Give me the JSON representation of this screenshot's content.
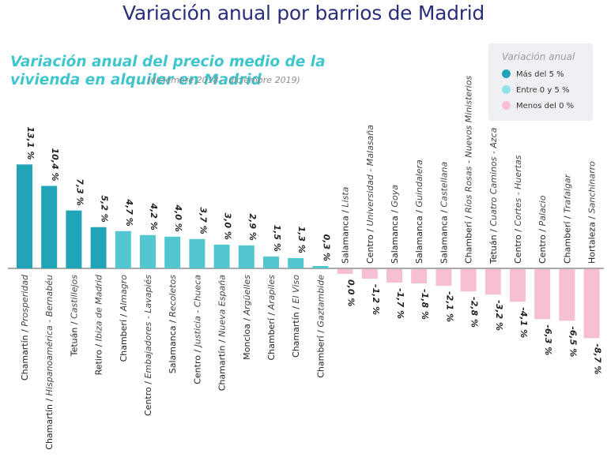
{
  "page": {
    "title": "Variación anual por barrios de Madrid"
  },
  "legend": {
    "title": "Variación anual",
    "items": [
      {
        "label": "Más del 5 %",
        "color": "#21a3b8"
      },
      {
        "label": "Entre 0 y 5 %",
        "color": "#53c7d0"
      },
      {
        "label": "Menos del 0 %",
        "color": "#f7bfd3"
      }
    ]
  },
  "chart_data": {
    "type": "bar",
    "title": "Variación anual del precio medio de la vivienda en alquiler en Madrid",
    "subtitle": "(diciembre 2018 – diciembre 2019)",
    "unit": "%",
    "categories": [
      {
        "district": "Chamartín",
        "barrio": "Prosperidad",
        "value": 13.1,
        "label": "13,1 %"
      },
      {
        "district": "Chamartín",
        "barrio": "Hispanoamérica - Bernabéu",
        "value": 10.4,
        "label": "10,4 %"
      },
      {
        "district": "Tetuán",
        "barrio": "Castillejos",
        "value": 7.3,
        "label": "7,3 %"
      },
      {
        "district": "Retiro",
        "barrio": "Ibiza de Madrid",
        "value": 5.2,
        "label": "5,2 %"
      },
      {
        "district": "Chamberí",
        "barrio": "Almagro",
        "value": 4.7,
        "label": "4,7 %"
      },
      {
        "district": "Centro",
        "barrio": "Embajadores - Lavapiés",
        "value": 4.2,
        "label": "4,2 %"
      },
      {
        "district": "Salamanca",
        "barrio": "Recoletos",
        "value": 4.0,
        "label": "4,0 %"
      },
      {
        "district": "Centro",
        "barrio": "Justicia - Chueca",
        "value": 3.7,
        "label": "3,7 %"
      },
      {
        "district": "Chamartín",
        "barrio": "Nueva España",
        "value": 3.0,
        "label": "3,0 %"
      },
      {
        "district": "Moncloa",
        "barrio": "Argüelles",
        "value": 2.9,
        "label": "2,9 %"
      },
      {
        "district": "Chamberí",
        "barrio": "Arapiles",
        "value": 1.5,
        "label": "1,5 %"
      },
      {
        "district": "Chamartín",
        "barrio": "El Viso",
        "value": 1.3,
        "label": "1,3 %"
      },
      {
        "district": "Chamberí",
        "barrio": "Gaztambide",
        "value": 0.3,
        "label": "0,3 %"
      },
      {
        "district": "Salamanca",
        "barrio": "Lista",
        "value": -0.0,
        "label": "0,0 %"
      },
      {
        "district": "Centro",
        "barrio": "Universidad - Malasaña",
        "value": -1.2,
        "label": "-1,2 %"
      },
      {
        "district": "Salamanca",
        "barrio": "Goya",
        "value": -1.7,
        "label": "-1,7 %"
      },
      {
        "district": "Salamanca",
        "barrio": "Guindalera",
        "value": -1.8,
        "label": "-1,8 %"
      },
      {
        "district": "Salamanca",
        "barrio": "Castellana",
        "value": -2.1,
        "label": "-2,1 %"
      },
      {
        "district": "Chamberí",
        "barrio": "Ríos Rosas - Nuevos Ministerios",
        "value": -2.8,
        "label": "-2,8 %"
      },
      {
        "district": "Tetuán",
        "barrio": "Cuatro Caminos - Azca",
        "value": -3.2,
        "label": "-3,2 %"
      },
      {
        "district": "Centro",
        "barrio": "Cortes - Huertas",
        "value": -4.1,
        "label": "-4,1 %"
      },
      {
        "district": "Centro",
        "barrio": "Palacio",
        "value": -6.3,
        "label": "-6,3 %"
      },
      {
        "district": "Chamberí",
        "barrio": "Trafalgar",
        "value": -6.5,
        "label": "-6,5 %"
      },
      {
        "district": "Hortaleza",
        "barrio": "Sanchinarro",
        "value": -8.7,
        "label": "-8,7 %"
      }
    ],
    "ylim": [
      -9,
      13.1
    ],
    "colors": {
      "high": "#21a3b8",
      "mid": "#53c7d0",
      "neg": "#f7bfd3"
    },
    "thresholds": {
      "high": 5,
      "neg": 0
    }
  }
}
